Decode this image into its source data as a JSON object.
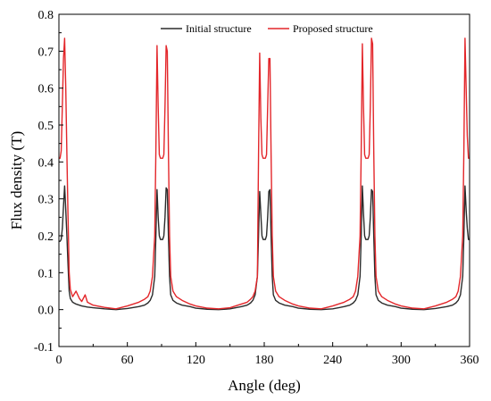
{
  "chart_data": {
    "type": "line",
    "title": "",
    "xlabel": "Angle (deg)",
    "ylabel": "Flux density (T)",
    "xlim": [
      0,
      360
    ],
    "ylim": [
      -0.1,
      0.8
    ],
    "xticks": [
      0,
      60,
      120,
      180,
      240,
      300,
      360
    ],
    "yticks": [
      -0.1,
      0.0,
      0.1,
      0.2,
      0.3,
      0.4,
      0.5,
      0.6,
      0.7,
      0.8
    ],
    "xtick_labels": [
      "0",
      "60",
      "120",
      "180",
      "240",
      "300",
      "360"
    ],
    "ytick_labels": [
      "-0.1",
      "0.0",
      "0.1",
      "0.2",
      "0.3",
      "0.4",
      "0.5",
      "0.6",
      "0.7",
      "0.8"
    ],
    "grid": false,
    "legend_position": "top",
    "series": [
      {
        "name": "Initial structure",
        "color": "#2b2b2b",
        "x": [
          0,
          1,
          2,
          3,
          4,
          5,
          6,
          7,
          8,
          9,
          10,
          12,
          15,
          20,
          25,
          30,
          40,
          50,
          60,
          70,
          75,
          78,
          80,
          82,
          84,
          85,
          86,
          87,
          88,
          89,
          90,
          91,
          92,
          93,
          94,
          95,
          96,
          97,
          98,
          100,
          103,
          108,
          115,
          120,
          130,
          140,
          150,
          160,
          165,
          168,
          170,
          172,
          174,
          175,
          176,
          177,
          178,
          179,
          180,
          181,
          182,
          183,
          184,
          185,
          186,
          187,
          188,
          190,
          193,
          198,
          205,
          210,
          220,
          230,
          240,
          250,
          255,
          258,
          260,
          262,
          264,
          265,
          266,
          267,
          268,
          269,
          270,
          271,
          272,
          273,
          274,
          275,
          276,
          277,
          278,
          280,
          283,
          288,
          295,
          300,
          310,
          320,
          330,
          340,
          345,
          348,
          350,
          352,
          354,
          355,
          356,
          357,
          358,
          359,
          360
        ],
        "y": [
          0.185,
          0.185,
          0.19,
          0.22,
          0.28,
          0.335,
          0.27,
          0.2,
          0.12,
          0.05,
          0.03,
          0.02,
          0.015,
          0.01,
          0.007,
          0.005,
          0.002,
          0.0,
          0.003,
          0.008,
          0.012,
          0.018,
          0.025,
          0.04,
          0.09,
          0.2,
          0.325,
          0.25,
          0.2,
          0.19,
          0.19,
          0.19,
          0.2,
          0.25,
          0.33,
          0.325,
          0.2,
          0.09,
          0.04,
          0.025,
          0.018,
          0.012,
          0.008,
          0.004,
          0.001,
          0.0,
          0.002,
          0.008,
          0.012,
          0.018,
          0.025,
          0.04,
          0.09,
          0.2,
          0.32,
          0.26,
          0.2,
          0.19,
          0.19,
          0.19,
          0.2,
          0.25,
          0.32,
          0.325,
          0.2,
          0.09,
          0.04,
          0.025,
          0.018,
          0.012,
          0.008,
          0.004,
          0.001,
          0.0,
          0.002,
          0.008,
          0.012,
          0.018,
          0.025,
          0.04,
          0.09,
          0.2,
          0.335,
          0.26,
          0.2,
          0.19,
          0.19,
          0.19,
          0.2,
          0.25,
          0.325,
          0.32,
          0.2,
          0.09,
          0.04,
          0.025,
          0.018,
          0.012,
          0.008,
          0.004,
          0.001,
          0.0,
          0.003,
          0.008,
          0.012,
          0.018,
          0.025,
          0.04,
          0.09,
          0.2,
          0.335,
          0.27,
          0.22,
          0.19,
          0.19
        ]
      },
      {
        "name": "Proposed structure",
        "color": "#e3262a",
        "x": [
          0,
          1,
          2,
          3,
          4,
          5,
          6,
          7,
          8,
          9,
          10,
          12,
          15,
          18,
          20,
          23,
          25,
          30,
          40,
          50,
          60,
          70,
          75,
          78,
          80,
          82,
          84,
          85,
          86,
          87,
          88,
          89,
          90,
          91,
          92,
          93,
          94,
          95,
          96,
          97,
          98,
          100,
          103,
          108,
          115,
          120,
          130,
          140,
          150,
          160,
          165,
          168,
          170,
          172,
          174,
          175,
          176,
          177,
          178,
          179,
          180,
          181,
          182,
          183,
          184,
          185,
          186,
          187,
          188,
          190,
          193,
          198,
          205,
          210,
          220,
          230,
          240,
          250,
          255,
          258,
          260,
          262,
          264,
          265,
          266,
          267,
          268,
          269,
          270,
          271,
          272,
          273,
          274,
          275,
          276,
          277,
          278,
          280,
          283,
          288,
          295,
          300,
          310,
          320,
          330,
          340,
          345,
          348,
          350,
          352,
          354,
          355,
          356,
          357,
          358,
          359,
          360
        ],
        "y": [
          0.41,
          0.41,
          0.43,
          0.55,
          0.68,
          0.735,
          0.6,
          0.42,
          0.25,
          0.1,
          0.055,
          0.035,
          0.05,
          0.03,
          0.022,
          0.04,
          0.02,
          0.012,
          0.006,
          0.002,
          0.01,
          0.02,
          0.028,
          0.035,
          0.05,
          0.09,
          0.2,
          0.43,
          0.715,
          0.55,
          0.42,
          0.41,
          0.41,
          0.41,
          0.42,
          0.55,
          0.715,
          0.7,
          0.43,
          0.2,
          0.09,
          0.05,
          0.035,
          0.025,
          0.015,
          0.01,
          0.004,
          0.002,
          0.005,
          0.015,
          0.02,
          0.028,
          0.035,
          0.05,
          0.09,
          0.42,
          0.695,
          0.52,
          0.42,
          0.41,
          0.41,
          0.41,
          0.42,
          0.55,
          0.68,
          0.68,
          0.42,
          0.2,
          0.09,
          0.05,
          0.035,
          0.025,
          0.015,
          0.01,
          0.004,
          0.002,
          0.01,
          0.02,
          0.028,
          0.035,
          0.05,
          0.09,
          0.2,
          0.43,
          0.72,
          0.55,
          0.42,
          0.41,
          0.41,
          0.41,
          0.42,
          0.55,
          0.735,
          0.72,
          0.43,
          0.2,
          0.09,
          0.05,
          0.035,
          0.025,
          0.015,
          0.01,
          0.004,
          0.002,
          0.01,
          0.02,
          0.028,
          0.035,
          0.05,
          0.09,
          0.2,
          0.43,
          0.735,
          0.6,
          0.47,
          0.41,
          0.41
        ]
      }
    ]
  }
}
